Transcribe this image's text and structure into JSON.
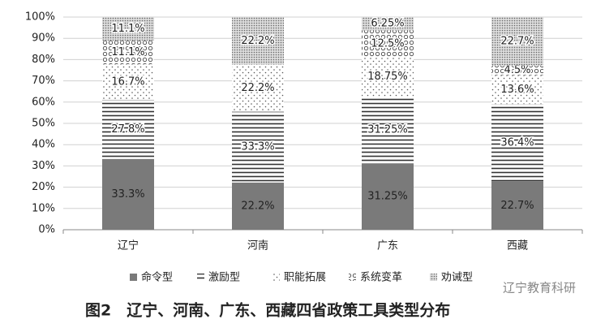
{
  "chart_data": {
    "type": "stacked_bar",
    "categories": [
      "辽宁",
      "河南",
      "广东",
      "西藏"
    ],
    "series": [
      {
        "name": "命令型",
        "color": "#7a7a7a",
        "values": [
          33.3,
          22.2,
          31.25,
          22.7
        ],
        "value_labels": [
          "33.3%",
          "22.2%",
          "31.25%",
          "22.7%"
        ]
      },
      {
        "name": "激励型",
        "color": "#333333",
        "values": [
          27.8,
          33.3,
          31.25,
          36.4
        ],
        "value_labels": [
          "27.8%",
          "33.3%",
          "31.25%",
          "36.4%"
        ]
      },
      {
        "name": "职能拓展",
        "color": "#555555",
        "values": [
          16.7,
          22.2,
          18.75,
          13.6
        ],
        "value_labels": [
          "16.7%",
          "22.2%",
          "18.75%",
          "13.6%"
        ]
      },
      {
        "name": "系统变革",
        "color": "#444444",
        "values": [
          11.1,
          null,
          12.5,
          4.5
        ],
        "value_labels": [
          "11.1%",
          null,
          "12.5%",
          "4.5%"
        ]
      },
      {
        "name": "劝诫型",
        "color": "#666666",
        "values": [
          11.1,
          22.2,
          6.25,
          22.7
        ],
        "value_labels": [
          "11.1%",
          "22.2%",
          "6.25%",
          "22.7%"
        ]
      }
    ],
    "ylim": [
      0,
      100
    ],
    "yticks": [
      {
        "value": 0,
        "label": "0%"
      },
      {
        "value": 10,
        "label": "10%"
      },
      {
        "value": 20,
        "label": "20%"
      },
      {
        "value": 30,
        "label": "30%"
      },
      {
        "value": 40,
        "label": "40%"
      },
      {
        "value": 50,
        "label": "50%"
      },
      {
        "value": 60,
        "label": "60%"
      },
      {
        "value": 70,
        "label": "70%"
      },
      {
        "value": 80,
        "label": "80%"
      },
      {
        "value": 90,
        "label": "90%"
      },
      {
        "value": 100,
        "label": "100%"
      }
    ],
    "caption": "图2　辽宁、河南、广东、西藏四省政策工具类型分布",
    "watermark": "辽宁教育科研"
  }
}
